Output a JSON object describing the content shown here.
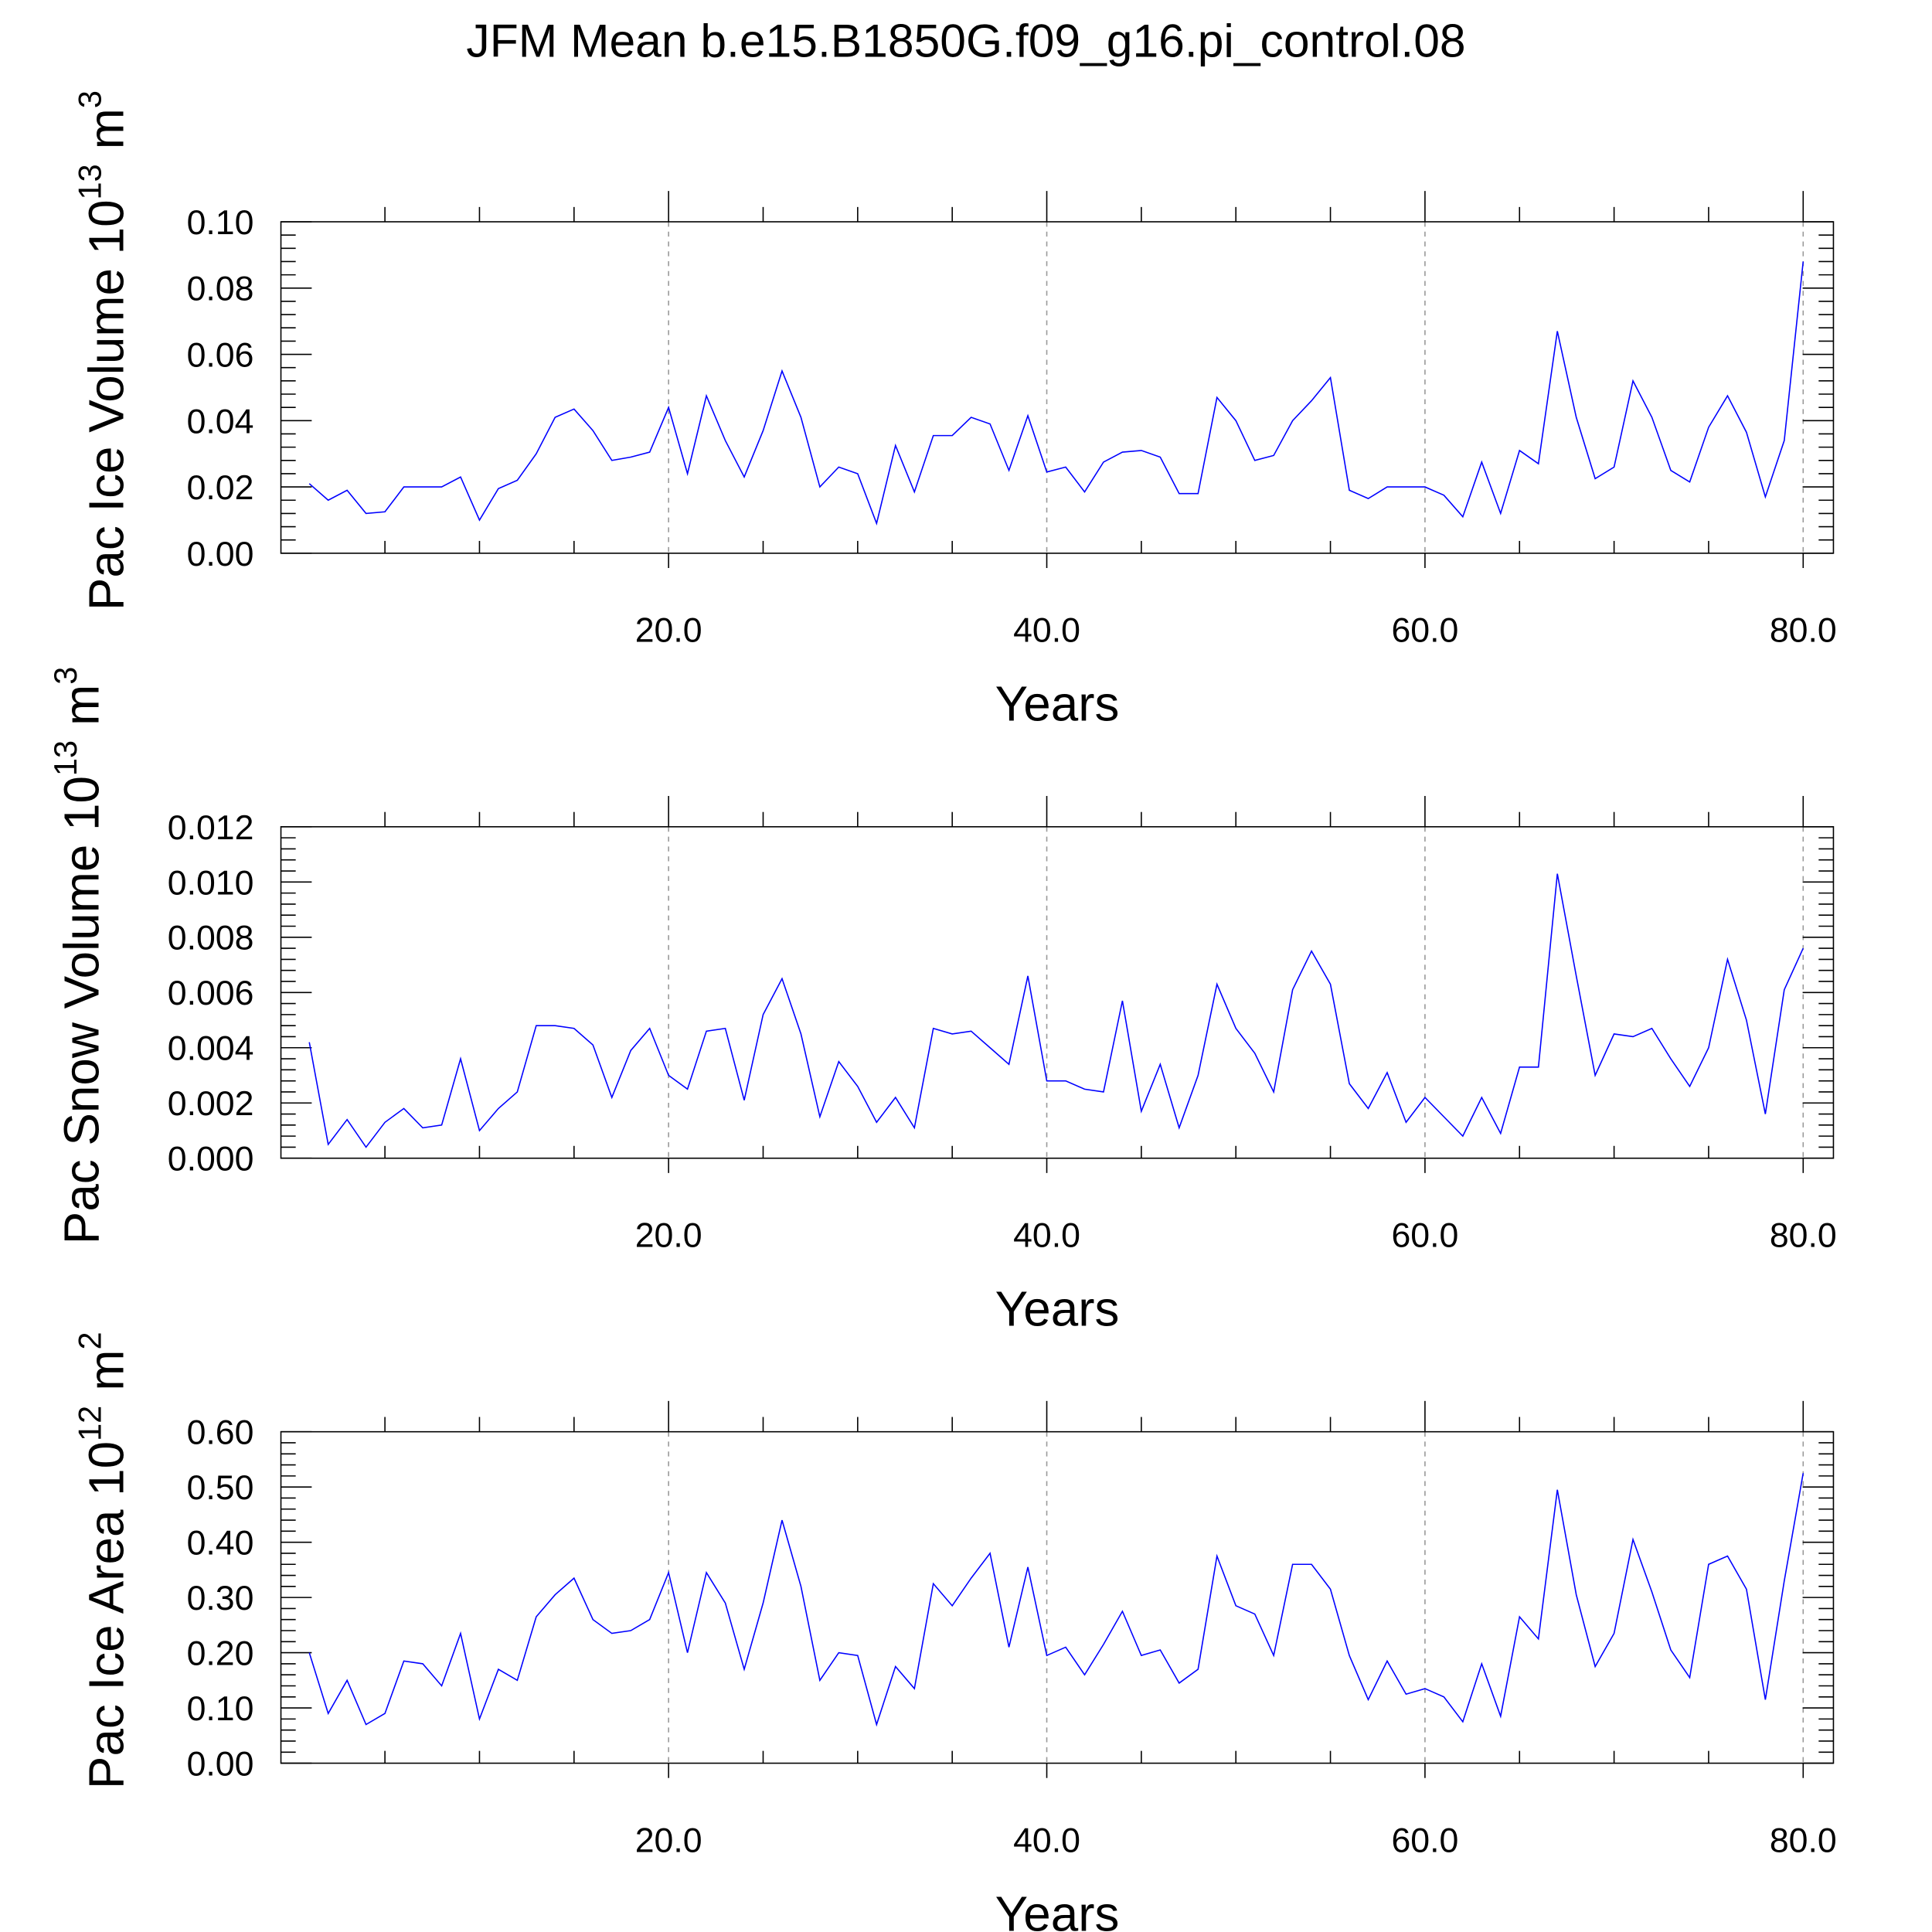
{
  "title": "JFM Mean b.e15.B1850G.f09_g16.pi_control.08",
  "chart_data": [
    {
      "type": "line",
      "ylabel": {
        "text": "Pac Ice Volume 10",
        "exp": "13",
        "unit": "m",
        "unit_exp": "3"
      },
      "xlabel": "Years",
      "x": [
        1,
        2,
        3,
        4,
        5,
        6,
        7,
        8,
        9,
        10,
        11,
        12,
        13,
        14,
        15,
        16,
        17,
        18,
        19,
        20,
        21,
        22,
        23,
        24,
        25,
        26,
        27,
        28,
        29,
        30,
        31,
        32,
        33,
        34,
        35,
        36,
        37,
        38,
        39,
        40,
        41,
        42,
        43,
        44,
        45,
        46,
        47,
        48,
        49,
        50,
        51,
        52,
        53,
        54,
        55,
        56,
        57,
        58,
        59,
        60,
        61,
        62,
        63,
        64,
        65,
        66,
        67,
        68,
        69,
        70,
        71,
        72,
        73,
        74,
        75,
        76,
        77,
        78,
        79,
        80
      ],
      "series": [
        {
          "color": "#0000ff",
          "values": [
            0.021,
            0.016,
            0.019,
            0.012,
            0.0125,
            0.02,
            0.02,
            0.02,
            0.023,
            0.01,
            0.0195,
            0.022,
            0.03,
            0.041,
            0.0435,
            0.037,
            0.028,
            0.029,
            0.0305,
            0.044,
            0.024,
            0.0475,
            0.034,
            0.023,
            0.037,
            0.055,
            0.041,
            0.02,
            0.026,
            0.024,
            0.009,
            0.0325,
            0.0185,
            0.0355,
            0.0355,
            0.041,
            0.039,
            0.025,
            0.0415,
            0.0245,
            0.026,
            0.0185,
            0.0275,
            0.0305,
            0.031,
            0.029,
            0.018,
            0.018,
            0.047,
            0.04,
            0.028,
            0.0295,
            0.04,
            0.046,
            0.053,
            0.019,
            0.0165,
            0.02,
            0.02,
            0.02,
            0.0175,
            0.011,
            0.0275,
            0.012,
            0.031,
            0.027,
            0.067,
            0.041,
            0.0225,
            0.026,
            0.052,
            0.041,
            0.025,
            0.0215,
            0.038,
            0.0475,
            0.0365,
            0.017,
            0.034,
            0.088
          ]
        }
      ],
      "xlim": [
        -0.5,
        81.6
      ],
      "xticks": [
        {
          "value": 20,
          "label": "20.0"
        },
        {
          "value": 40,
          "label": "40.0"
        },
        {
          "value": 60,
          "label": "60.0"
        },
        {
          "value": 80,
          "label": "80.0"
        }
      ],
      "ylim": [
        0,
        0.1
      ],
      "yticks": [
        {
          "value": 0,
          "label": "0.00"
        },
        {
          "value": 0.02,
          "label": "0.02"
        },
        {
          "value": 0.04,
          "label": "0.04"
        },
        {
          "value": 0.06,
          "label": "0.06"
        },
        {
          "value": 0.08,
          "label": "0.08"
        },
        {
          "value": 0.1,
          "label": "0.10"
        }
      ],
      "grid": true
    },
    {
      "type": "line",
      "ylabel": {
        "text": "Pac Snow Volume 10",
        "exp": "13",
        "unit": "m",
        "unit_exp": "3"
      },
      "xlabel": "Years",
      "x": [
        1,
        2,
        3,
        4,
        5,
        6,
        7,
        8,
        9,
        10,
        11,
        12,
        13,
        14,
        15,
        16,
        17,
        18,
        19,
        20,
        21,
        22,
        23,
        24,
        25,
        26,
        27,
        28,
        29,
        30,
        31,
        32,
        33,
        34,
        35,
        36,
        37,
        38,
        39,
        40,
        41,
        42,
        43,
        44,
        45,
        46,
        47,
        48,
        49,
        50,
        51,
        52,
        53,
        54,
        55,
        56,
        57,
        58,
        59,
        60,
        61,
        62,
        63,
        64,
        65,
        66,
        67,
        68,
        69,
        70,
        71,
        72,
        73,
        74,
        75,
        76,
        77,
        78,
        79,
        80
      ],
      "series": [
        {
          "color": "#0000ff",
          "values": [
            0.0042,
            0.0005,
            0.0014,
            0.0004,
            0.0013,
            0.0018,
            0.0011,
            0.0012,
            0.0036,
            0.001,
            0.0018,
            0.0024,
            0.0048,
            0.0048,
            0.0047,
            0.0041,
            0.0022,
            0.0039,
            0.0047,
            0.003,
            0.0025,
            0.0046,
            0.0047,
            0.0021,
            0.0052,
            0.0065,
            0.0045,
            0.0015,
            0.0035,
            0.0026,
            0.0013,
            0.0022,
            0.0011,
            0.0047,
            0.0045,
            0.0046,
            0.004,
            0.0034,
            0.0066,
            0.0028,
            0.0028,
            0.0025,
            0.0024,
            0.0057,
            0.0017,
            0.0034,
            0.0011,
            0.003,
            0.0063,
            0.0047,
            0.0038,
            0.0024,
            0.0061,
            0.0075,
            0.0063,
            0.0027,
            0.0018,
            0.0031,
            0.0013,
            0.0022,
            0.0015,
            0.0008,
            0.0022,
            0.0009,
            0.0033,
            0.0033,
            0.0103,
            0.0066,
            0.003,
            0.0045,
            0.0044,
            0.0047,
            0.0036,
            0.0026,
            0.004,
            0.0072,
            0.005,
            0.0016,
            0.0061,
            0.0076
          ]
        }
      ],
      "xlim": [
        -0.5,
        81.6
      ],
      "xticks": [
        {
          "value": 20,
          "label": "20.0"
        },
        {
          "value": 40,
          "label": "40.0"
        },
        {
          "value": 60,
          "label": "60.0"
        },
        {
          "value": 80,
          "label": "80.0"
        }
      ],
      "ylim": [
        0,
        0.012
      ],
      "yticks": [
        {
          "value": 0,
          "label": "0.000"
        },
        {
          "value": 0.002,
          "label": "0.002"
        },
        {
          "value": 0.004,
          "label": "0.004"
        },
        {
          "value": 0.006,
          "label": "0.006"
        },
        {
          "value": 0.008,
          "label": "0.008"
        },
        {
          "value": 0.01,
          "label": "0.010"
        },
        {
          "value": 0.012,
          "label": "0.012"
        }
      ],
      "grid": true
    },
    {
      "type": "line",
      "ylabel": {
        "text": "Pac Ice Area 10",
        "exp": "12",
        "unit": "m",
        "unit_exp": "2"
      },
      "xlabel": "Years",
      "x": [
        1,
        2,
        3,
        4,
        5,
        6,
        7,
        8,
        9,
        10,
        11,
        12,
        13,
        14,
        15,
        16,
        17,
        18,
        19,
        20,
        21,
        22,
        23,
        24,
        25,
        26,
        27,
        28,
        29,
        30,
        31,
        32,
        33,
        34,
        35,
        36,
        37,
        38,
        39,
        40,
        41,
        42,
        43,
        44,
        45,
        46,
        47,
        48,
        49,
        50,
        51,
        52,
        53,
        54,
        55,
        56,
        57,
        58,
        59,
        60,
        61,
        62,
        63,
        64,
        65,
        66,
        67,
        68,
        69,
        70,
        71,
        72,
        73,
        74,
        75,
        76,
        77,
        78,
        79,
        80
      ],
      "series": [
        {
          "color": "#0000ff",
          "values": [
            0.2,
            0.09,
            0.15,
            0.07,
            0.09,
            0.185,
            0.18,
            0.14,
            0.235,
            0.08,
            0.17,
            0.15,
            0.265,
            0.305,
            0.335,
            0.26,
            0.235,
            0.24,
            0.26,
            0.345,
            0.2,
            0.345,
            0.29,
            0.17,
            0.29,
            0.44,
            0.32,
            0.15,
            0.2,
            0.195,
            0.07,
            0.175,
            0.135,
            0.325,
            0.285,
            0.335,
            0.38,
            0.21,
            0.355,
            0.195,
            0.21,
            0.16,
            0.215,
            0.275,
            0.195,
            0.205,
            0.145,
            0.17,
            0.375,
            0.285,
            0.27,
            0.195,
            0.36,
            0.36,
            0.315,
            0.195,
            0.115,
            0.185,
            0.125,
            0.135,
            0.12,
            0.075,
            0.18,
            0.085,
            0.265,
            0.225,
            0.495,
            0.305,
            0.175,
            0.235,
            0.405,
            0.31,
            0.205,
            0.155,
            0.36,
            0.375,
            0.315,
            0.115,
            0.33,
            0.525
          ]
        }
      ],
      "xlim": [
        -0.5,
        81.6
      ],
      "xticks": [
        {
          "value": 20,
          "label": "20.0"
        },
        {
          "value": 40,
          "label": "40.0"
        },
        {
          "value": 60,
          "label": "60.0"
        },
        {
          "value": 80,
          "label": "80.0"
        }
      ],
      "ylim": [
        0,
        0.6
      ],
      "yticks": [
        {
          "value": 0,
          "label": "0.00"
        },
        {
          "value": 0.1,
          "label": "0.10"
        },
        {
          "value": 0.2,
          "label": "0.20"
        },
        {
          "value": 0.3,
          "label": "0.30"
        },
        {
          "value": 0.4,
          "label": "0.40"
        },
        {
          "value": 0.5,
          "label": "0.50"
        },
        {
          "value": 0.6,
          "label": "0.60"
        }
      ],
      "grid": true
    }
  ]
}
